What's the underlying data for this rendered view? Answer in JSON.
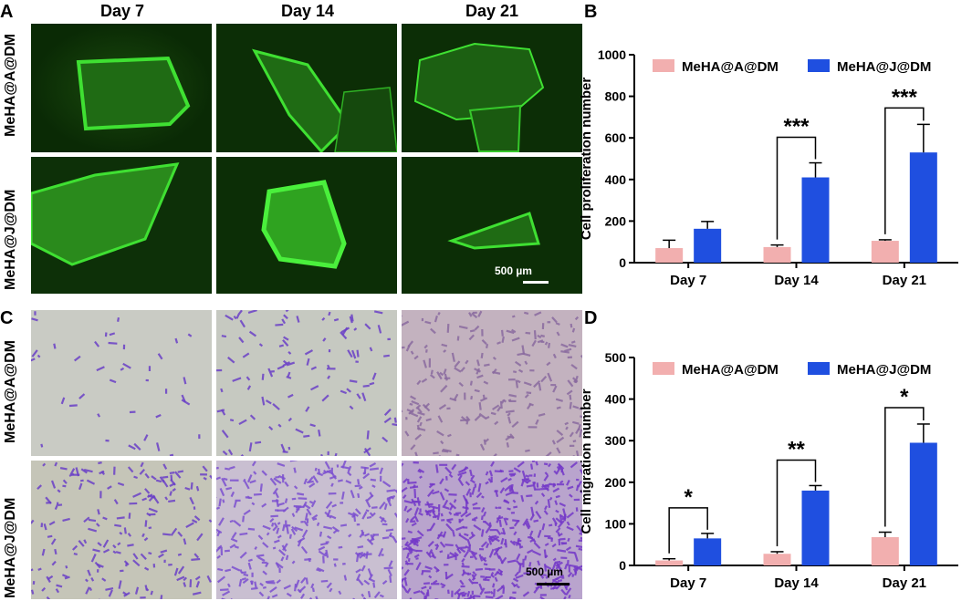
{
  "panels": {
    "A": "A",
    "B": "B",
    "C": "C",
    "D": "D"
  },
  "columns": [
    "Day 7",
    "Day 14",
    "Day 21"
  ],
  "rows": [
    "MeHA@A@DM",
    "MeHA@J@DM"
  ],
  "scale_label": "500 µm",
  "colors": {
    "series_a": "#F2AFAF",
    "series_j": "#1F4FE0",
    "fluorescence": "#32d22a",
    "stain": "#6a3fc7"
  },
  "chart_data": [
    {
      "type": "bar",
      "panel": "B",
      "categories": [
        "Day 7",
        "Day 14",
        "Day 21"
      ],
      "ylabel": "Cell proliferation number",
      "xlabel": "",
      "ylim": [
        0,
        1000
      ],
      "yticks": [
        0,
        200,
        400,
        600,
        800,
        1000
      ],
      "legend": "top",
      "series": [
        {
          "name": "MeHA@A@DM",
          "values": [
            70,
            75,
            105
          ],
          "errors": [
            38,
            10,
            5
          ]
        },
        {
          "name": "MeHA@J@DM",
          "values": [
            163,
            410,
            530
          ],
          "errors": [
            35,
            70,
            135
          ]
        }
      ],
      "significance": [
        {
          "category": "Day 14",
          "label": "***"
        },
        {
          "category": "Day 21",
          "label": "***"
        }
      ]
    },
    {
      "type": "bar",
      "panel": "D",
      "categories": [
        "Day 7",
        "Day 14",
        "Day 21"
      ],
      "ylabel": "Cell migration number",
      "xlabel": "",
      "ylim": [
        0,
        500
      ],
      "yticks": [
        0,
        100,
        200,
        300,
        400,
        500
      ],
      "legend": "top",
      "series": [
        {
          "name": "MeHA@A@DM",
          "values": [
            12,
            28,
            68
          ],
          "errors": [
            4,
            5,
            12
          ]
        },
        {
          "name": "MeHA@J@DM",
          "values": [
            65,
            180,
            295
          ],
          "errors": [
            12,
            12,
            45
          ]
        }
      ],
      "significance": [
        {
          "category": "Day 7",
          "label": "*"
        },
        {
          "category": "Day 14",
          "label": "**"
        },
        {
          "category": "Day 21",
          "label": "*"
        }
      ]
    }
  ]
}
